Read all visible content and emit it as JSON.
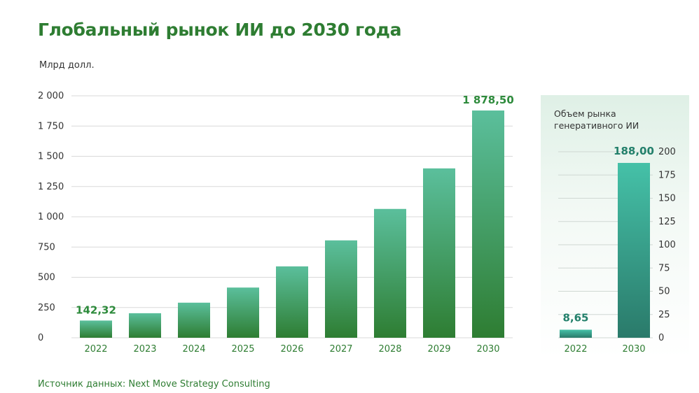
{
  "title": "Глобальный рынок ИИ до 2030 года",
  "units": "Млрд долл.",
  "source": "Источник данных: Next Move Strategy Consulting",
  "colors": {
    "title": "#2e7d32",
    "main_top": "#5bbf9c",
    "main_bottom": "#2e7d32",
    "side_top": "#45c1a8",
    "side_bottom": "#2a7a6a"
  },
  "chart_data": [
    {
      "type": "bar",
      "categories": [
        "2022",
        "2023",
        "2024",
        "2025",
        "2026",
        "2027",
        "2028",
        "2029",
        "2030"
      ],
      "values": [
        142.32,
        203,
        290,
        415,
        590,
        805,
        1065,
        1400,
        1878.5
      ],
      "data_labels": [
        "142,32",
        "",
        "",
        "",
        "",
        "",
        "",
        "",
        "1 878,50"
      ],
      "yticks": [
        "0",
        "250",
        "500",
        "750",
        "1 000",
        "1 250",
        "1 500",
        "1 750",
        "2 000"
      ],
      "ylim": [
        0,
        2000
      ],
      "grid": true,
      "ylabel": "Млрд долл."
    },
    {
      "type": "bar",
      "title": "Объем рынка генеративного ИИ",
      "categories": [
        "2022",
        "2030"
      ],
      "values": [
        8.65,
        188.0
      ],
      "data_labels": [
        "8,65",
        "188,00"
      ],
      "yticks": [
        "0",
        "25",
        "50",
        "75",
        "100",
        "125",
        "150",
        "175",
        "200"
      ],
      "ylim": [
        0,
        200
      ],
      "grid": true
    }
  ]
}
